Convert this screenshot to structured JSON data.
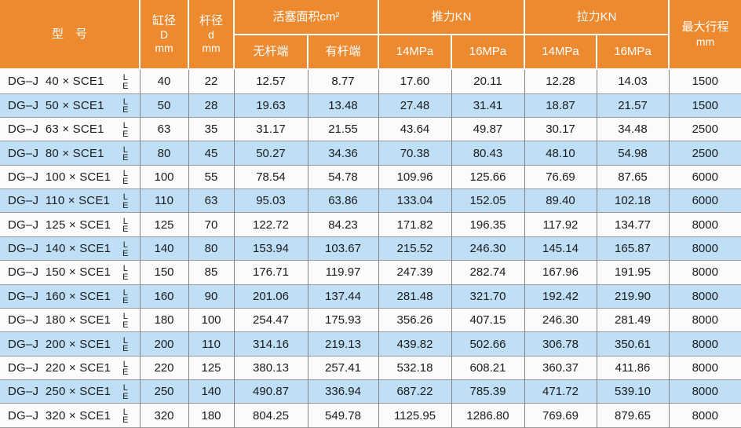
{
  "colors": {
    "header_bg": "#ED8A2F",
    "stripe_blue": "#BFDFF7",
    "row_white": "#FBFBFB",
    "grid_line": "#858585",
    "body_text": "#1B1B1B",
    "header_text": "#FFFFFF"
  },
  "table": {
    "header": {
      "model": "型　号",
      "bore": {
        "l1": "缸径",
        "l2": "D",
        "l3": "mm"
      },
      "rod": {
        "l1": "杆径",
        "l2": "d",
        "l3": "mm"
      },
      "piston_area": "活塞面积cm²",
      "rodless_end": "无杆端",
      "rod_end": "有杆端",
      "thrust": "推力KN",
      "pull": "拉力KN",
      "thrust_14": "14MPa",
      "thrust_16": "16MPa",
      "pull_14": "14MPa",
      "pull_16": "16MPa",
      "max_stroke": {
        "l1": "最大行程",
        "l2": "mm"
      }
    },
    "row_tag": {
      "top": "L",
      "bottom": "E"
    },
    "rows": [
      {
        "model": "DG–J  40 × SCE1",
        "bore": "40",
        "rod": "22",
        "area_rodless": "12.57",
        "area_rod": "8.77",
        "thrust_14": "17.60",
        "thrust_16": "20.11",
        "pull_14": "12.28",
        "pull_16": "14.03",
        "stroke": "1500"
      },
      {
        "model": "DG–J  50 × SCE1",
        "bore": "50",
        "rod": "28",
        "area_rodless": "19.63",
        "area_rod": "13.48",
        "thrust_14": "27.48",
        "thrust_16": "31.41",
        "pull_14": "18.87",
        "pull_16": "21.57",
        "stroke": "1500"
      },
      {
        "model": "DG–J  63 × SCE1",
        "bore": "63",
        "rod": "35",
        "area_rodless": "31.17",
        "area_rod": "21.55",
        "thrust_14": "43.64",
        "thrust_16": "49.87",
        "pull_14": "30.17",
        "pull_16": "34.48",
        "stroke": "2500"
      },
      {
        "model": "DG–J  80 × SCE1",
        "bore": "80",
        "rod": "45",
        "area_rodless": "50.27",
        "area_rod": "34.36",
        "thrust_14": "70.38",
        "thrust_16": "80.43",
        "pull_14": "48.10",
        "pull_16": "54.98",
        "stroke": "2500"
      },
      {
        "model": "DG–J  100 × SCE1",
        "bore": "100",
        "rod": "55",
        "area_rodless": "78.54",
        "area_rod": "54.78",
        "thrust_14": "109.96",
        "thrust_16": "125.66",
        "pull_14": "76.69",
        "pull_16": "87.65",
        "stroke": "6000"
      },
      {
        "model": "DG–J  110 × SCE1",
        "bore": "110",
        "rod": "63",
        "area_rodless": "95.03",
        "area_rod": "63.86",
        "thrust_14": "133.04",
        "thrust_16": "152.05",
        "pull_14": "89.40",
        "pull_16": "102.18",
        "stroke": "6000"
      },
      {
        "model": "DG–J  125 × SCE1",
        "bore": "125",
        "rod": "70",
        "area_rodless": "122.72",
        "area_rod": "84.23",
        "thrust_14": "171.82",
        "thrust_16": "196.35",
        "pull_14": "117.92",
        "pull_16": "134.77",
        "stroke": "8000"
      },
      {
        "model": "DG–J  140 × SCE1",
        "bore": "140",
        "rod": "80",
        "area_rodless": "153.94",
        "area_rod": "103.67",
        "thrust_14": "215.52",
        "thrust_16": "246.30",
        "pull_14": "145.14",
        "pull_16": "165.87",
        "stroke": "8000"
      },
      {
        "model": "DG–J  150 × SCE1",
        "bore": "150",
        "rod": "85",
        "area_rodless": "176.71",
        "area_rod": "119.97",
        "thrust_14": "247.39",
        "thrust_16": "282.74",
        "pull_14": "167.96",
        "pull_16": "191.95",
        "stroke": "8000"
      },
      {
        "model": "DG–J  160 × SCE1",
        "bore": "160",
        "rod": "90",
        "area_rodless": "201.06",
        "area_rod": "137.44",
        "thrust_14": "281.48",
        "thrust_16": "321.70",
        "pull_14": "192.42",
        "pull_16": "219.90",
        "stroke": "8000"
      },
      {
        "model": "DG–J  180 × SCE1",
        "bore": "180",
        "rod": "100",
        "area_rodless": "254.47",
        "area_rod": "175.93",
        "thrust_14": "356.26",
        "thrust_16": "407.15",
        "pull_14": "246.30",
        "pull_16": "281.49",
        "stroke": "8000"
      },
      {
        "model": "DG–J  200 × SCE1",
        "bore": "200",
        "rod": "110",
        "area_rodless": "314.16",
        "area_rod": "219.13",
        "thrust_14": "439.82",
        "thrust_16": "502.66",
        "pull_14": "306.78",
        "pull_16": "350.61",
        "stroke": "8000"
      },
      {
        "model": "DG–J  220 × SCE1",
        "bore": "220",
        "rod": "125",
        "area_rodless": "380.13",
        "area_rod": "257.41",
        "thrust_14": "532.18",
        "thrust_16": "608.21",
        "pull_14": "360.37",
        "pull_16": "411.86",
        "stroke": "8000"
      },
      {
        "model": "DG–J  250 × SCE1",
        "bore": "250",
        "rod": "140",
        "area_rodless": "490.87",
        "area_rod": "336.94",
        "thrust_14": "687.22",
        "thrust_16": "785.39",
        "pull_14": "471.72",
        "pull_16": "539.10",
        "stroke": "8000"
      },
      {
        "model": "DG–J  320 × SCE1",
        "bore": "320",
        "rod": "180",
        "area_rodless": "804.25",
        "area_rod": "549.78",
        "thrust_14": "1125.95",
        "thrust_16": "1286.80",
        "pull_14": "769.69",
        "pull_16": "879.65",
        "stroke": "8000"
      }
    ]
  }
}
